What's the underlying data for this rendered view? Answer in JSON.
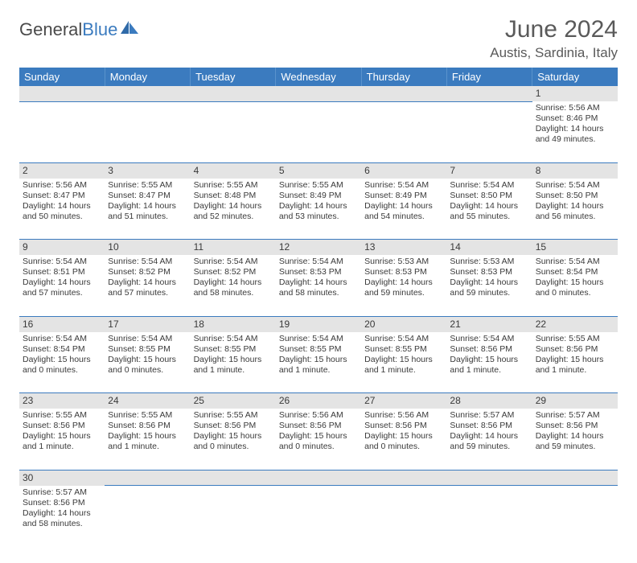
{
  "logo": {
    "text1": "General",
    "text2": "Blue"
  },
  "title": "June 2024",
  "location": "Austis, Sardinia, Italy",
  "header_bg": "#3b7bbf",
  "daynum_bg": "#e4e4e4",
  "day_headers": [
    "Sunday",
    "Monday",
    "Tuesday",
    "Wednesday",
    "Thursday",
    "Friday",
    "Saturday"
  ],
  "weeks": [
    {
      "nums": [
        "",
        "",
        "",
        "",
        "",
        "",
        "1"
      ],
      "cells": [
        "",
        "",
        "",
        "",
        "",
        "",
        "Sunrise: 5:56 AM\nSunset: 8:46 PM\nDaylight: 14 hours and 49 minutes."
      ]
    },
    {
      "nums": [
        "2",
        "3",
        "4",
        "5",
        "6",
        "7",
        "8"
      ],
      "cells": [
        "Sunrise: 5:56 AM\nSunset: 8:47 PM\nDaylight: 14 hours and 50 minutes.",
        "Sunrise: 5:55 AM\nSunset: 8:47 PM\nDaylight: 14 hours and 51 minutes.",
        "Sunrise: 5:55 AM\nSunset: 8:48 PM\nDaylight: 14 hours and 52 minutes.",
        "Sunrise: 5:55 AM\nSunset: 8:49 PM\nDaylight: 14 hours and 53 minutes.",
        "Sunrise: 5:54 AM\nSunset: 8:49 PM\nDaylight: 14 hours and 54 minutes.",
        "Sunrise: 5:54 AM\nSunset: 8:50 PM\nDaylight: 14 hours and 55 minutes.",
        "Sunrise: 5:54 AM\nSunset: 8:50 PM\nDaylight: 14 hours and 56 minutes."
      ]
    },
    {
      "nums": [
        "9",
        "10",
        "11",
        "12",
        "13",
        "14",
        "15"
      ],
      "cells": [
        "Sunrise: 5:54 AM\nSunset: 8:51 PM\nDaylight: 14 hours and 57 minutes.",
        "Sunrise: 5:54 AM\nSunset: 8:52 PM\nDaylight: 14 hours and 57 minutes.",
        "Sunrise: 5:54 AM\nSunset: 8:52 PM\nDaylight: 14 hours and 58 minutes.",
        "Sunrise: 5:54 AM\nSunset: 8:53 PM\nDaylight: 14 hours and 58 minutes.",
        "Sunrise: 5:53 AM\nSunset: 8:53 PM\nDaylight: 14 hours and 59 minutes.",
        "Sunrise: 5:53 AM\nSunset: 8:53 PM\nDaylight: 14 hours and 59 minutes.",
        "Sunrise: 5:54 AM\nSunset: 8:54 PM\nDaylight: 15 hours and 0 minutes."
      ]
    },
    {
      "nums": [
        "16",
        "17",
        "18",
        "19",
        "20",
        "21",
        "22"
      ],
      "cells": [
        "Sunrise: 5:54 AM\nSunset: 8:54 PM\nDaylight: 15 hours and 0 minutes.",
        "Sunrise: 5:54 AM\nSunset: 8:55 PM\nDaylight: 15 hours and 0 minutes.",
        "Sunrise: 5:54 AM\nSunset: 8:55 PM\nDaylight: 15 hours and 1 minute.",
        "Sunrise: 5:54 AM\nSunset: 8:55 PM\nDaylight: 15 hours and 1 minute.",
        "Sunrise: 5:54 AM\nSunset: 8:55 PM\nDaylight: 15 hours and 1 minute.",
        "Sunrise: 5:54 AM\nSunset: 8:56 PM\nDaylight: 15 hours and 1 minute.",
        "Sunrise: 5:55 AM\nSunset: 8:56 PM\nDaylight: 15 hours and 1 minute."
      ]
    },
    {
      "nums": [
        "23",
        "24",
        "25",
        "26",
        "27",
        "28",
        "29"
      ],
      "cells": [
        "Sunrise: 5:55 AM\nSunset: 8:56 PM\nDaylight: 15 hours and 1 minute.",
        "Sunrise: 5:55 AM\nSunset: 8:56 PM\nDaylight: 15 hours and 1 minute.",
        "Sunrise: 5:55 AM\nSunset: 8:56 PM\nDaylight: 15 hours and 0 minutes.",
        "Sunrise: 5:56 AM\nSunset: 8:56 PM\nDaylight: 15 hours and 0 minutes.",
        "Sunrise: 5:56 AM\nSunset: 8:56 PM\nDaylight: 15 hours and 0 minutes.",
        "Sunrise: 5:57 AM\nSunset: 8:56 PM\nDaylight: 14 hours and 59 minutes.",
        "Sunrise: 5:57 AM\nSunset: 8:56 PM\nDaylight: 14 hours and 59 minutes."
      ]
    },
    {
      "nums": [
        "30",
        "",
        "",
        "",
        "",
        "",
        ""
      ],
      "cells": [
        "Sunrise: 5:57 AM\nSunset: 8:56 PM\nDaylight: 14 hours and 58 minutes.",
        "",
        "",
        "",
        "",
        "",
        ""
      ]
    }
  ]
}
